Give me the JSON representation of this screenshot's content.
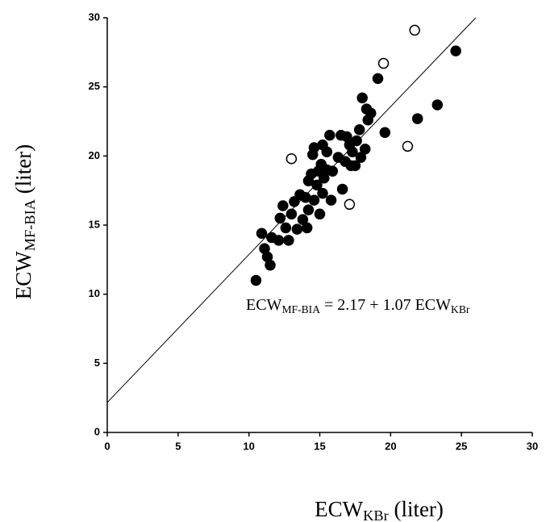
{
  "chart_data": {
    "type": "scatter",
    "xlim": [
      0,
      30
    ],
    "ylim": [
      0,
      30
    ],
    "xticks": [
      0,
      5,
      10,
      15,
      20,
      25,
      30
    ],
    "yticks": [
      0,
      5,
      10,
      15,
      20,
      25,
      30
    ],
    "x_label": [
      {
        "text": "ECW"
      },
      {
        "text": "KBr",
        "sub": true
      },
      {
        "text": " (liter)"
      }
    ],
    "y_label": [
      {
        "text": "ECW"
      },
      {
        "text": "MF-BIA",
        "sub": true
      },
      {
        "text": " (liter)"
      }
    ],
    "annotation": [
      {
        "text": "ECW"
      },
      {
        "text": "MF-BIA",
        "sub": true
      },
      {
        "text": " = 2.17 + 1.07 ECW"
      },
      {
        "text": "KBr",
        "sub": true
      }
    ],
    "fit": {
      "intercept": 2.17,
      "slope": 1.07,
      "color": "#000000"
    },
    "series": [
      {
        "marker": "filled",
        "color": "#000000",
        "x": [
          10.5,
          10.9,
          11.1,
          11.3,
          11.5,
          11.6,
          12.1,
          12.2,
          12.4,
          12.6,
          12.8,
          13.0,
          13.2,
          13.4,
          13.6,
          13.8,
          14.0,
          14.1,
          14.2,
          14.2,
          14.4,
          14.5,
          14.6,
          14.6,
          14.8,
          14.9,
          15.0,
          15.1,
          15.2,
          15.2,
          15.3,
          15.5,
          15.5,
          15.7,
          15.8,
          15.9,
          16.3,
          16.5,
          16.6,
          16.8,
          16.9,
          17.1,
          17.2,
          17.3,
          17.5,
          17.6,
          17.8,
          17.9,
          18.0,
          18.2,
          18.3,
          18.4,
          18.6,
          19.1,
          19.6,
          21.9,
          23.3,
          24.6
        ],
        "values": [
          11.0,
          14.4,
          13.3,
          12.7,
          12.1,
          14.1,
          13.9,
          15.5,
          16.4,
          14.8,
          13.9,
          15.8,
          16.7,
          14.7,
          17.2,
          15.4,
          17.0,
          14.8,
          18.2,
          16.1,
          18.7,
          20.1,
          20.6,
          16.8,
          17.9,
          18.9,
          15.8,
          19.4,
          20.8,
          17.3,
          18.4,
          19.0,
          20.3,
          21.5,
          16.8,
          18.9,
          19.9,
          21.5,
          17.6,
          19.6,
          21.4,
          20.8,
          19.3,
          20.3,
          19.3,
          21.1,
          21.9,
          19.9,
          24.2,
          20.5,
          23.4,
          22.6,
          23.1,
          25.6,
          21.7,
          22.7,
          23.7,
          27.6
        ]
      },
      {
        "marker": "open",
        "color": "#000000",
        "x": [
          13.0,
          19.5,
          21.7,
          21.2,
          17.1
        ],
        "values": [
          19.8,
          26.7,
          29.1,
          20.7,
          16.5
        ]
      }
    ]
  }
}
